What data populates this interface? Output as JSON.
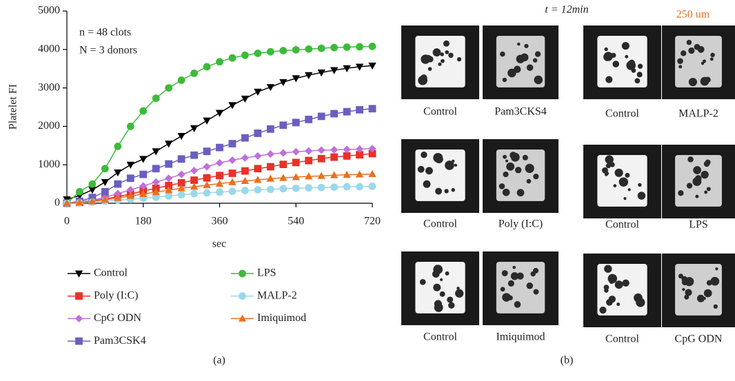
{
  "chart_data": {
    "type": "line",
    "y_label": "Platelet FI",
    "x_label": "sec",
    "annotations": [
      "n = 48 clots",
      "N = 3 donors"
    ],
    "x": [
      0,
      30,
      60,
      90,
      120,
      150,
      180,
      210,
      240,
      270,
      300,
      330,
      360,
      390,
      420,
      450,
      480,
      510,
      540,
      570,
      600,
      630,
      660,
      690,
      720
    ],
    "xlim": [
      0,
      720
    ],
    "xticks": [
      0,
      180,
      360,
      540,
      720
    ],
    "ylim": [
      0,
      5000
    ],
    "yticks": [
      0,
      1000,
      2000,
      3000,
      4000,
      5000
    ],
    "series": [
      {
        "name": "Control",
        "color": "#000000",
        "marker": "triangle-down",
        "values": [
          100,
          200,
          350,
          550,
          800,
          1000,
          1150,
          1350,
          1550,
          1750,
          1950,
          2150,
          2350,
          2550,
          2720,
          2900,
          3020,
          3150,
          3250,
          3330,
          3400,
          3460,
          3510,
          3550,
          3580
        ]
      },
      {
        "name": "Poly (I:C)",
        "color": "#e8312a",
        "marker": "square",
        "values": [
          0,
          20,
          60,
          110,
          170,
          240,
          320,
          390,
          460,
          530,
          600,
          660,
          720,
          780,
          840,
          900,
          950,
          1010,
          1060,
          1110,
          1160,
          1200,
          1230,
          1260,
          1290
        ]
      },
      {
        "name": "CpG ODN",
        "color": "#c070d8",
        "marker": "diamond",
        "values": [
          0,
          30,
          80,
          150,
          250,
          350,
          450,
          550,
          650,
          750,
          850,
          950,
          1050,
          1120,
          1180,
          1230,
          1280,
          1310,
          1340,
          1360,
          1380,
          1390,
          1400,
          1410,
          1420
        ]
      },
      {
        "name": "Pam3CSK4",
        "color": "#6a5fc0",
        "marker": "square",
        "values": [
          0,
          50,
          150,
          300,
          500,
          650,
          750,
          900,
          1020,
          1150,
          1250,
          1350,
          1450,
          1550,
          1700,
          1820,
          1930,
          2030,
          2100,
          2180,
          2260,
          2330,
          2380,
          2430,
          2460
        ]
      },
      {
        "name": "LPS",
        "color": "#3dba3a",
        "marker": "circle",
        "values": [
          0,
          300,
          500,
          900,
          1480,
          2000,
          2400,
          2730,
          3000,
          3200,
          3380,
          3550,
          3680,
          3780,
          3850,
          3900,
          3940,
          3970,
          3990,
          4010,
          4030,
          4050,
          4060,
          4070,
          4080
        ]
      },
      {
        "name": "MALP-2",
        "color": "#9ad8ea",
        "marker": "circle",
        "values": [
          0,
          10,
          30,
          50,
          80,
          100,
          130,
          160,
          190,
          220,
          250,
          270,
          290,
          310,
          330,
          350,
          360,
          380,
          390,
          400,
          410,
          420,
          430,
          430,
          440
        ]
      },
      {
        "name": "Imiquimod",
        "color": "#e87020",
        "marker": "triangle-up",
        "values": [
          0,
          20,
          50,
          90,
          140,
          190,
          240,
          290,
          340,
          390,
          430,
          470,
          510,
          550,
          580,
          610,
          640,
          660,
          680,
          700,
          710,
          730,
          740,
          750,
          760
        ]
      }
    ],
    "panel_label": "(a)"
  },
  "panel_b": {
    "title": "t = 12min",
    "scale_bar": "250 um",
    "panel_label": "(b)",
    "pairs": [
      [
        "Control",
        "Pam3CKS4"
      ],
      [
        "Control",
        "Poly (I:C)"
      ],
      [
        "Control",
        "Imiquimod"
      ],
      [
        "Control",
        "MALP-2"
      ],
      [
        "Control",
        "LPS"
      ],
      [
        "Control",
        "CpG ODN"
      ]
    ]
  }
}
